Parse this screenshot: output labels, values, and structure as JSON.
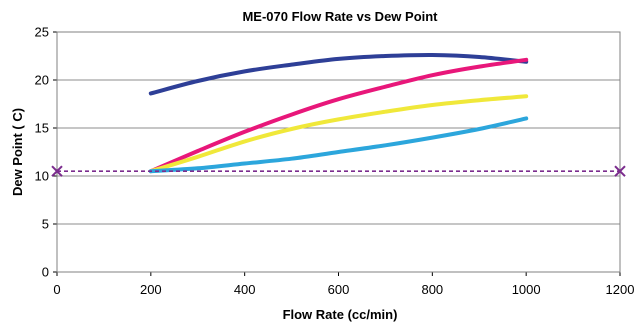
{
  "chart_data": {
    "type": "line",
    "title": "ME-070 Flow Rate vs Dew Point",
    "xlabel": "Flow Rate (cc/min)",
    "ylabel": "Dew Point ( C)",
    "xlim": [
      0,
      1200
    ],
    "ylim": [
      0,
      25
    ],
    "xticks": [
      0,
      200,
      400,
      600,
      800,
      1000,
      1200
    ],
    "yticks": [
      0,
      5,
      10,
      15,
      20,
      25
    ],
    "grid": "horizontal",
    "legend": "none",
    "series": [
      {
        "color": "#2e3f97",
        "x": [
          200,
          300,
          400,
          500,
          600,
          700,
          800,
          900,
          1000
        ],
        "y": [
          18.6,
          19.9,
          20.9,
          21.6,
          22.2,
          22.5,
          22.6,
          22.4,
          21.9
        ]
      },
      {
        "color": "#e8177a",
        "x": [
          200,
          300,
          400,
          500,
          600,
          700,
          800,
          900,
          1000
        ],
        "y": [
          10.5,
          12.6,
          14.6,
          16.4,
          18.0,
          19.3,
          20.5,
          21.4,
          22.1
        ]
      },
      {
        "color": "#f0e83a",
        "x": [
          200,
          300,
          400,
          500,
          600,
          700,
          800,
          900,
          1000
        ],
        "y": [
          10.5,
          12.0,
          13.6,
          14.9,
          15.9,
          16.7,
          17.4,
          17.9,
          18.3
        ]
      },
      {
        "color": "#2ca6dc",
        "x": [
          200,
          300,
          400,
          500,
          600,
          700,
          800,
          900,
          1000
        ],
        "y": [
          10.5,
          10.8,
          11.3,
          11.8,
          12.5,
          13.2,
          14.0,
          14.9,
          16.0
        ]
      },
      {
        "color": "#7b2c8e",
        "style": "dashed",
        "marker": "x",
        "x": [
          0,
          1200
        ],
        "y": [
          10.5,
          10.5
        ]
      }
    ]
  }
}
